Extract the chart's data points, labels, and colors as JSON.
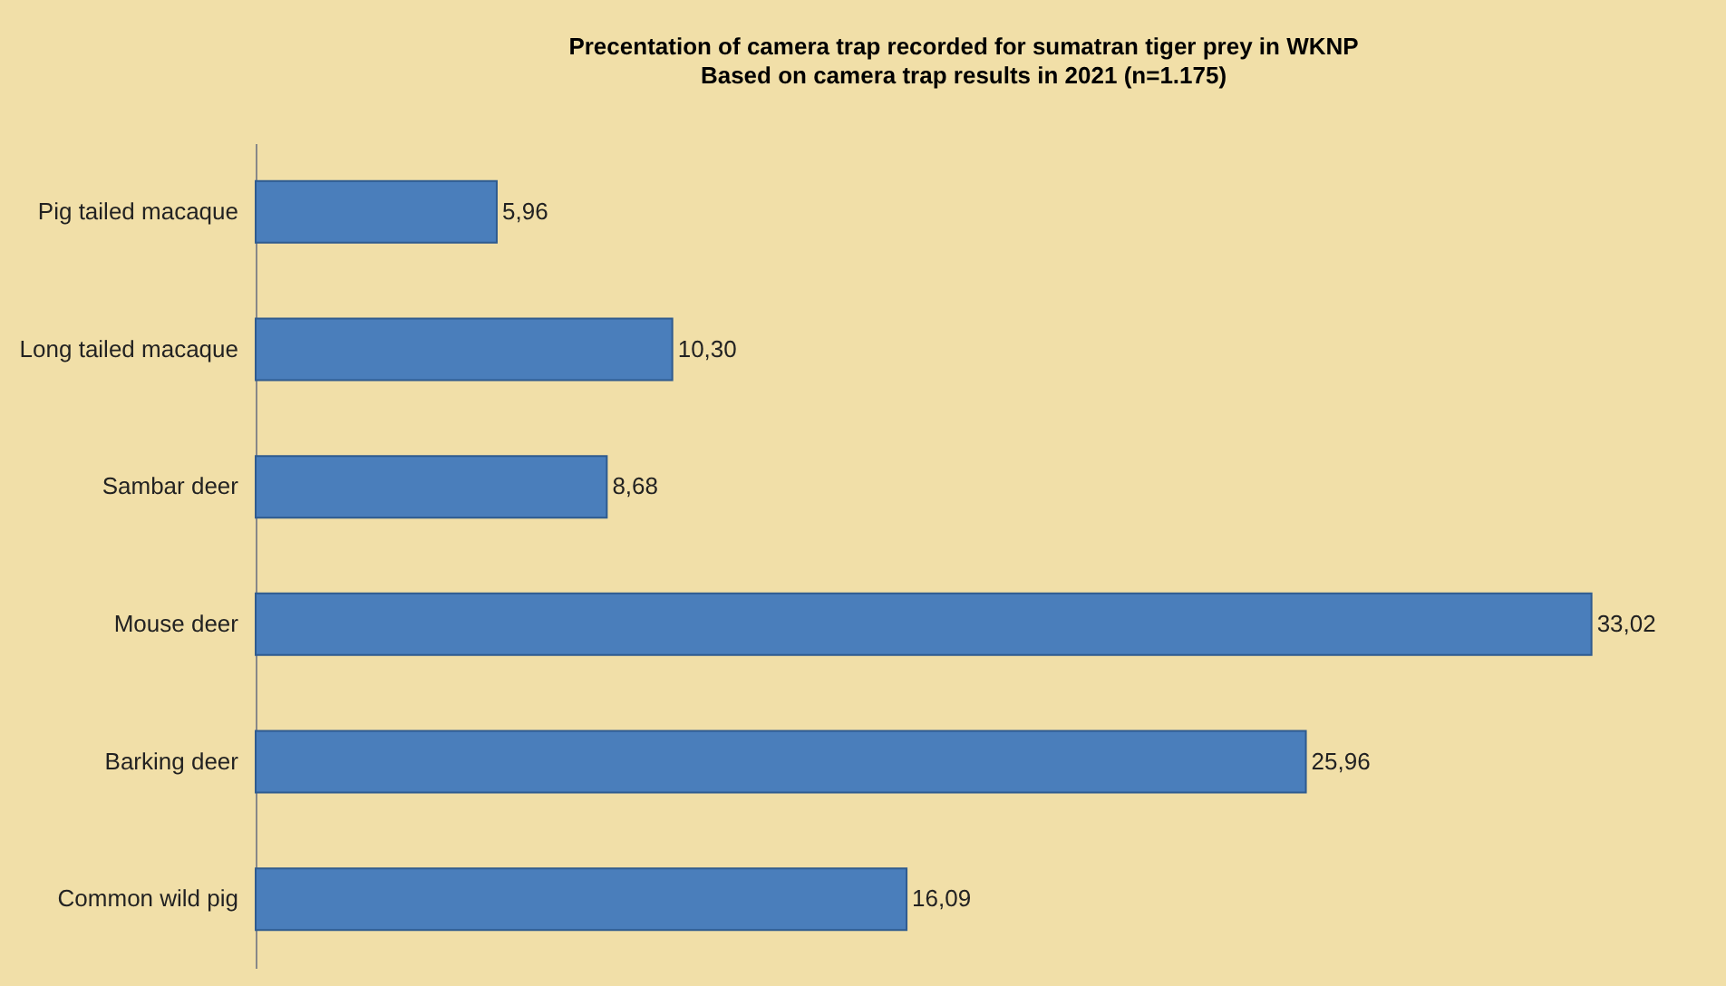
{
  "chart_data": {
    "type": "bar",
    "orientation": "horizontal",
    "title": "Precentation of camera trap recorded for sumatran tiger prey in WKNP",
    "subtitle": "Based on camera trap results in 2021 (n=1.175)",
    "categories": [
      "Pig tailed macaque",
      "Long tailed macaque",
      "Sambar deer",
      "Mouse deer",
      "Barking deer",
      "Common wild pig"
    ],
    "values": [
      5.96,
      10.3,
      8.68,
      33.02,
      25.96,
      16.09
    ],
    "value_labels": [
      "5,96",
      "10,30",
      "8,68",
      "33,02",
      "25,96",
      "16,09"
    ],
    "color": "#4a7ebb"
  }
}
